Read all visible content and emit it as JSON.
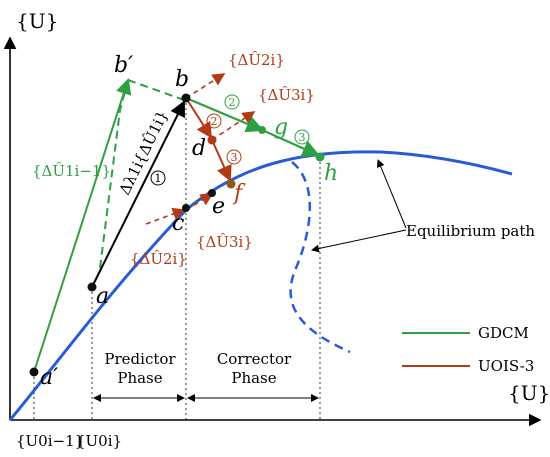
{
  "axes": {
    "y_label": "{U}",
    "x_label": "{U}"
  },
  "points": {
    "a_prime": "a′",
    "a": "a",
    "b_prime": "b′",
    "b": "b",
    "c": "c",
    "d": "d",
    "e": "e",
    "f": "f",
    "g": "g",
    "h": "h"
  },
  "vectors": {
    "gdcm_initial": "{ΔÛ1i−1}",
    "predictor_main": "Δλ1i{ΔÛ1i}",
    "b_U2": "{ΔÛ2i}",
    "b_U3": "{ΔÛ3i}",
    "c_U2": "{ΔÛ2i}",
    "c_U3": "{ΔÛ3i}"
  },
  "steps": {
    "one": "1",
    "two_green": "2",
    "two_red": "2",
    "three_green": "3",
    "three_red": "3"
  },
  "ticks": {
    "left": "{U0i−1}",
    "right": "{U0i}"
  },
  "phases": {
    "predictor": [
      "Predictor",
      "Phase"
    ],
    "corrector": [
      "Corrector",
      "Phase"
    ]
  },
  "annotation": "Equilibrium path",
  "legend": [
    {
      "label": "GDCM",
      "color": "#2ea043"
    },
    {
      "label": "UOIS-3",
      "color": "#b23a16"
    }
  ],
  "colors": {
    "curve": "#2a5bd7",
    "green": "#2ea043",
    "red": "#b23a16",
    "black": "#000000"
  }
}
